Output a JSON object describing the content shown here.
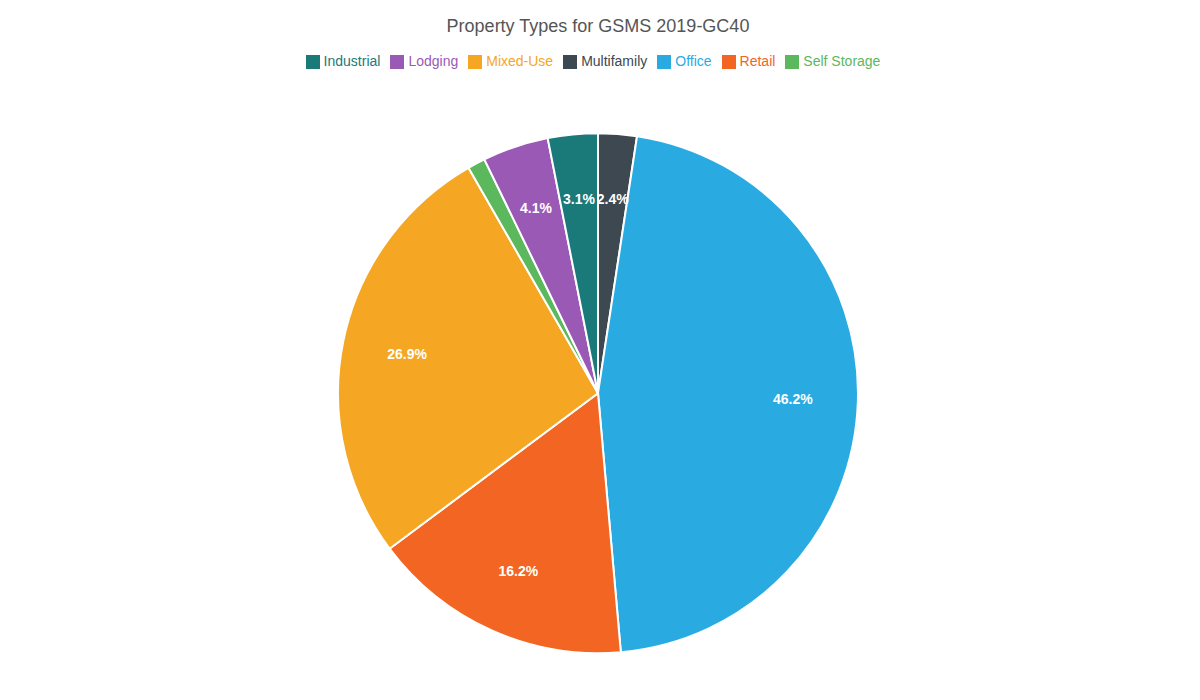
{
  "chart_data": {
    "type": "pie",
    "title": "Property Types for GSMS 2019-GC40",
    "categories": [
      "Multifamily",
      "Office",
      "Retail",
      "Mixed-Use",
      "Self Storage",
      "Lodging",
      "Industrial"
    ],
    "values": [
      2.4,
      46.2,
      16.2,
      26.9,
      1.1,
      4.1,
      3.1
    ],
    "value_labels": [
      "2.4%",
      "46.2%",
      "16.2%",
      "26.9%",
      null,
      "4.1%",
      "3.1%"
    ],
    "colors": [
      "#3d4850",
      "#29abe2",
      "#f26522",
      "#f5a623",
      "#5cb85c",
      "#9b59b6",
      "#1a7a7a"
    ],
    "data_labels": true,
    "legend": "top"
  }
}
